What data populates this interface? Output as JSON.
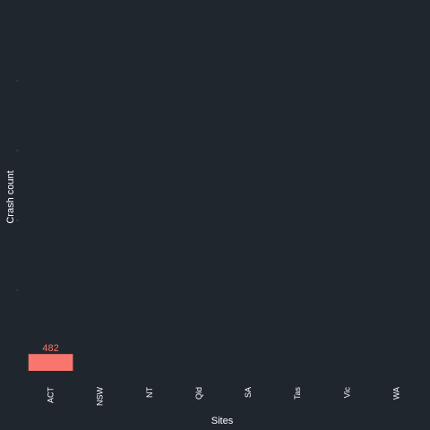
{
  "chart_data": {
    "type": "bar",
    "categories": [
      "ACT",
      "NSW",
      "NT",
      "Qld",
      "SA",
      "Tas",
      "Vic",
      "WA"
    ],
    "values": [
      482,
      null,
      null,
      null,
      null,
      null,
      null,
      null
    ],
    "data_labels": [
      "482",
      "",
      "",
      "",
      "",
      "",
      "",
      ""
    ],
    "title": "",
    "xlabel": "Sites",
    "ylabel": "Crash count",
    "ylim": [
      0,
      10000
    ],
    "grid": false,
    "legend": "none",
    "bar_color": "#f8766d",
    "label_color": "#f8766d",
    "background": "#20262e",
    "text_color": "#ffffff",
    "tick_color": "#3b434d"
  }
}
